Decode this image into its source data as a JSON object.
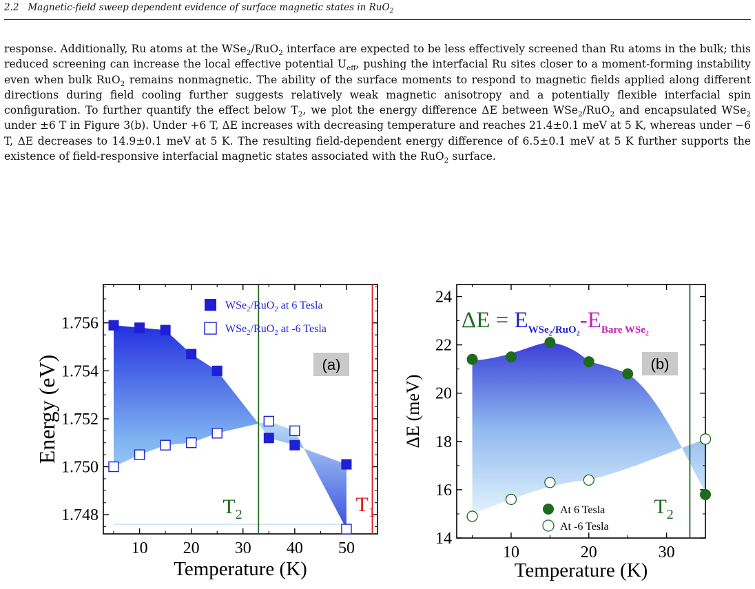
{
  "header": {
    "section_number": "2.2",
    "title_main": "Magnetic-field sweep dependent evidence of surface magnetic states in RuO",
    "title_sub": "2"
  },
  "paragraph": {
    "segments": [
      {
        "text": "response. Additionally, Ru atoms at the WSe"
      },
      {
        "sub": "2"
      },
      {
        "text": "/RuO"
      },
      {
        "sub": "2"
      },
      {
        "text": " interface are expected to be less effectively screened than Ru atoms in the bulk; this reduced screening can increase the local effective potential U"
      },
      {
        "sub": "eff"
      },
      {
        "text": ", pushing the interfacial Ru sites closer to a moment-forming instability even when bulk RuO"
      },
      {
        "sub": "2"
      },
      {
        "text": " remains nonmagnetic. The ability of the surface moments to respond to magnetic fields applied along different directions during field cooling further suggests relatively weak magnetic anisotropy and a potentially flexible interfacial spin configuration. To further quantify the effect below T"
      },
      {
        "sub": "2"
      },
      {
        "text": ", we plot the energy difference ΔE between WSe"
      },
      {
        "sub": "2"
      },
      {
        "text": "/RuO"
      },
      {
        "sub": "2"
      },
      {
        "text": " and encapsulated WSe"
      },
      {
        "sub": "2"
      },
      {
        "text": " under ±6 T in Figure 3(b). Under +6 T, ΔE increases with decreasing temperature and reaches 21.4±0.1 meV at 5 K, whereas under −6 T, ΔE decreases to 14.9±0.1 meV at 5 K. The resulting field-dependent energy difference of 6.5±0.1 meV at 5 K further supports the existence of field-responsive interfacial magnetic states associated with the RuO"
      },
      {
        "sub": "2"
      },
      {
        "text": " surface."
      }
    ]
  },
  "colors": {
    "blue_marker": "#1f1fd6",
    "green_marker": "#1e6b1e",
    "green_line": "#1e6b1e",
    "red_line": "#e01b1b",
    "magenta": "#c21fb8",
    "label_box": "#c9c9c9"
  },
  "chart_data": [
    {
      "type": "scatter",
      "panel_label": "(a)",
      "xlabel": "Temperature (K)",
      "ylabel": "Energy (eV)",
      "xlim": [
        3,
        56
      ],
      "ylim": [
        1.7472,
        1.7576
      ],
      "xticks": [
        10,
        20,
        30,
        40,
        50
      ],
      "yticks": [
        1.748,
        1.75,
        1.752,
        1.754,
        1.756
      ],
      "ytick_labels": [
        "1.748",
        "1.750",
        "1.752",
        "1.754",
        "1.756"
      ],
      "legend_position": "top-right",
      "series": [
        {
          "label_main": "WSe",
          "label_sub": "2",
          "label_mid": "/RuO",
          "label_sub2": "2",
          "label_tail": " at  6 Tesla",
          "marker": "filled-square",
          "x": [
            5,
            10,
            15,
            20,
            25,
            35,
            40,
            50
          ],
          "y": [
            1.7559,
            1.7558,
            1.7557,
            1.7547,
            1.754,
            1.7512,
            1.7509,
            1.7501
          ]
        },
        {
          "label_main": "WSe",
          "label_sub": "2",
          "label_mid": "/RuO",
          "label_sub2": "2",
          "label_tail": " at -6 Tesla",
          "marker": "open-square",
          "x": [
            5,
            10,
            15,
            20,
            25,
            35,
            40,
            50
          ],
          "y": [
            1.75,
            1.7505,
            1.7509,
            1.751,
            1.7514,
            1.7519,
            1.7515,
            1.7474
          ]
        }
      ],
      "vlines": [
        {
          "x": 33,
          "label_main": "T",
          "label_sub": "2",
          "color": "#1e6b1e"
        },
        {
          "x": 55,
          "label_main": "T",
          "label_sub": "1",
          "color": "#e01b1b"
        }
      ]
    },
    {
      "type": "scatter",
      "panel_label": "(b)",
      "xlabel": "Temperature (K)",
      "ylabel": "ΔE (meV)",
      "xlim": [
        3,
        35
      ],
      "ylim": [
        14,
        24.5
      ],
      "xticks": [
        10,
        20,
        30
      ],
      "yticks": [
        14,
        16,
        18,
        20,
        22,
        24
      ],
      "ytick_labels": [
        "14",
        "16",
        "18",
        "20",
        "22",
        "24"
      ],
      "legend_position": "bottom-center",
      "formula": {
        "lhs": "ΔE = ",
        "e1": "E",
        "e1_sub": "WSe",
        "e1_subsub": "2",
        "e1_sub_tail": "/RuO",
        "e1_subsub2": "2",
        "minus": "-",
        "e2": "E",
        "e2_sub": "Bare WSe",
        "e2_subsub": "2"
      },
      "series": [
        {
          "label": "At  6 Tesla",
          "marker": "filled-circle",
          "x": [
            5,
            10,
            15,
            20,
            25,
            35
          ],
          "y": [
            21.4,
            21.5,
            22.1,
            21.3,
            20.8,
            15.8
          ]
        },
        {
          "label": "At -6 Tesla",
          "marker": "open-circle",
          "x": [
            5,
            10,
            15,
            20,
            35
          ],
          "y": [
            14.9,
            15.6,
            16.3,
            16.4,
            18.1
          ]
        }
      ],
      "vlines": [
        {
          "x": 33,
          "label_main": "T",
          "label_sub": "2",
          "color": "#1e6b1e"
        }
      ]
    }
  ]
}
